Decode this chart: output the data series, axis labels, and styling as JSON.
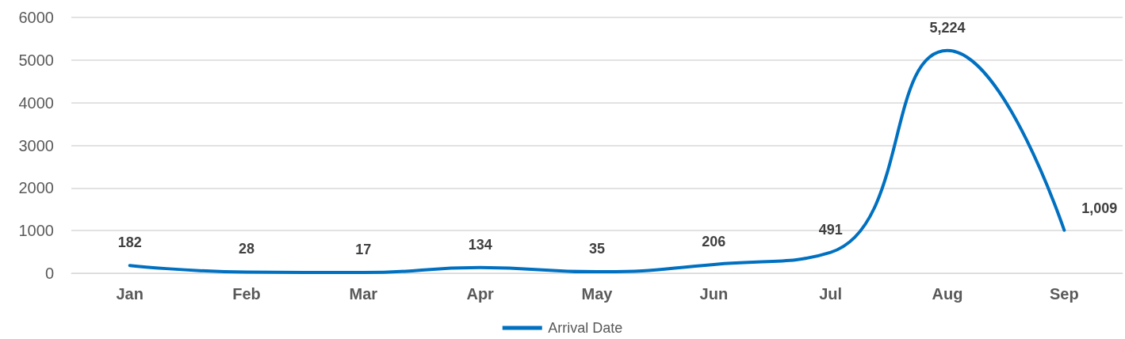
{
  "chart_data": {
    "type": "line",
    "categories": [
      "Jan",
      "Feb",
      "Mar",
      "Apr",
      "May",
      "Jun",
      "Jul",
      "Aug",
      "Sep"
    ],
    "series": [
      {
        "name": "Arrival Date",
        "color": "#0070c0",
        "values": [
          182,
          28,
          17,
          134,
          35,
          206,
          491,
          5224,
          1009
        ],
        "value_labels": [
          "182",
          "28",
          "17",
          "134",
          "35",
          "206",
          "491",
          "5,224",
          "1,009"
        ]
      }
    ],
    "ylim": [
      0,
      6000
    ],
    "yticks": [
      0,
      1000,
      2000,
      3000,
      4000,
      5000,
      6000
    ],
    "grid": "y",
    "legend": "bottom",
    "marker": "none",
    "line_style": "solid"
  }
}
